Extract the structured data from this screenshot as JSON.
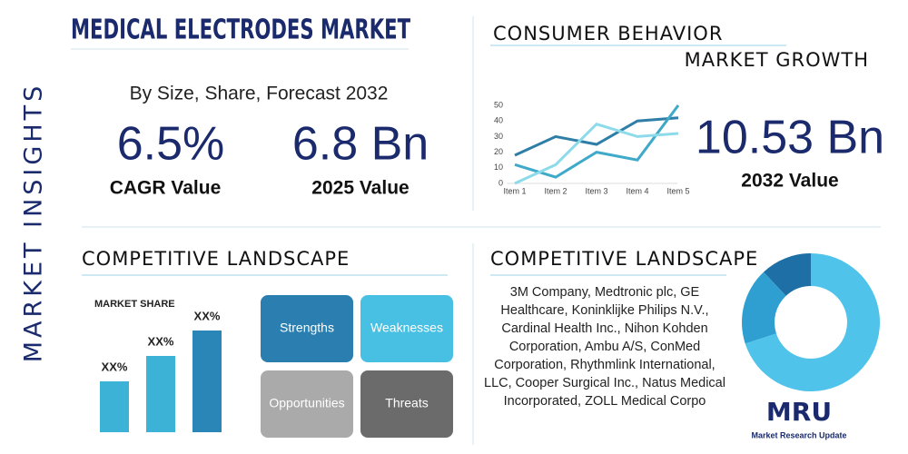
{
  "side_label": "MARKET INSIGHTS",
  "header": {
    "title": "MEDICAL ELECTRODES MARKET",
    "subtitle": "By Size, Share, Forecast 2032"
  },
  "stats": [
    {
      "value": "6.5%",
      "label": "CAGR Value"
    },
    {
      "value": "6.8 Bn",
      "label": "2025 Value"
    }
  ],
  "consumer_behavior": {
    "title": "CONSUMER BEHAVIOR",
    "subtitle": "MARKET GROWTH",
    "stat": {
      "value": "10.53 Bn",
      "label": "2032 Value"
    },
    "chart": {
      "type": "line",
      "categories": [
        "Item 1",
        "Item 2",
        "Item 3",
        "Item 4",
        "Item 5"
      ],
      "series": [
        {
          "color": "#2f7ea8",
          "values": [
            18,
            30,
            25,
            40,
            42
          ]
        },
        {
          "color": "#3fa9c9",
          "values": [
            12,
            4,
            20,
            15,
            50
          ]
        },
        {
          "color": "#8ddbea",
          "values": [
            0,
            12,
            38,
            30,
            32
          ]
        }
      ],
      "ylim": [
        0,
        50
      ],
      "yticks": [
        0,
        10,
        20,
        30,
        40,
        50
      ]
    }
  },
  "competitive_landscape": {
    "title": "COMPETITIVE LANDSCAPE",
    "chart": {
      "type": "bar",
      "title": "MARKET SHARE",
      "values": [
        20,
        30,
        40
      ],
      "value_labels": [
        "XX%",
        "XX%",
        "XX%"
      ],
      "colors": [
        "#3bb2d6",
        "#3bb2d6",
        "#2b86b8"
      ]
    },
    "swot": [
      "Strengths",
      "Weaknesses",
      "Opportunities",
      "Threats"
    ]
  },
  "companies": {
    "title": "COMPETITIVE LANDSCAPE",
    "text": "3M Company, Medtronic plc, GE Healthcare, Koninklijke Philips N.V., Cardinal Health Inc., Nihon Kohden Corporation, Ambu A/S, ConMed Corporation, Rhythmlink International, LLC, Cooper Surgical Inc., Natus Medical Incorporated, ZOLL Medical Corpo",
    "chart": {
      "type": "donut",
      "values": [
        12,
        18,
        70
      ],
      "colors": [
        "#1d6fa5",
        "#2e9fd0",
        "#4fc3ea"
      ]
    }
  },
  "logo": {
    "text": "MRU",
    "tagline": "Market Research Update"
  }
}
